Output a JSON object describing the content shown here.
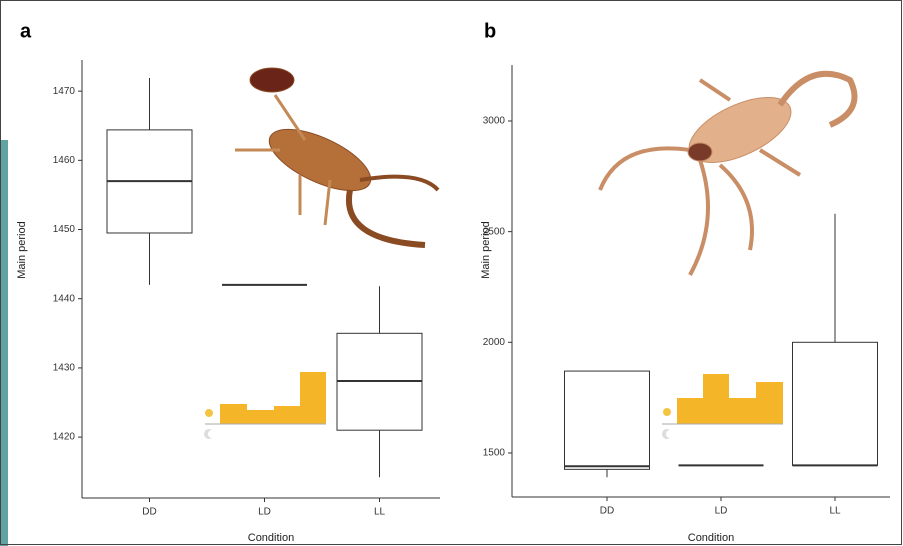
{
  "chart_data": [
    {
      "type": "box",
      "panel_label": "a",
      "x_label": "Condition",
      "y_label": "Main period",
      "categories": [
        "DD",
        "LD",
        "LL"
      ],
      "boxes": [
        {
          "min": 1442,
          "q1": 1449.5,
          "median": 1457,
          "q3": 1464.4,
          "max": 1471.9
        },
        {
          "min": 1442,
          "q1": 1442,
          "median": 1442,
          "q3": 1442,
          "max": 1442
        },
        {
          "min": 1414.2,
          "q1": 1421,
          "median": 1428.1,
          "q3": 1435,
          "max": 1441.8
        }
      ],
      "ylim": [
        1411.2,
        1474.5
      ],
      "yticks": [
        1420,
        1430,
        1440,
        1450,
        1460,
        1470
      ]
    },
    {
      "type": "box",
      "panel_label": "b",
      "x_label": "Condition",
      "y_label": "Main period",
      "categories": [
        "DD",
        "LD",
        "LL"
      ],
      "boxes": [
        {
          "min": 1390,
          "q1": 1426,
          "median": 1440,
          "q3": 1870,
          "max": 1870
        },
        {
          "min": 1444,
          "q1": 1444,
          "median": 1444,
          "q3": 1444,
          "max": 1444
        },
        {
          "min": 1444,
          "q1": 1444,
          "median": 1444,
          "q3": 2000,
          "max": 2581
        }
      ],
      "ylim": [
        1301,
        3253
      ],
      "yticks": [
        1500,
        2000,
        2500,
        3000
      ]
    }
  ]
}
